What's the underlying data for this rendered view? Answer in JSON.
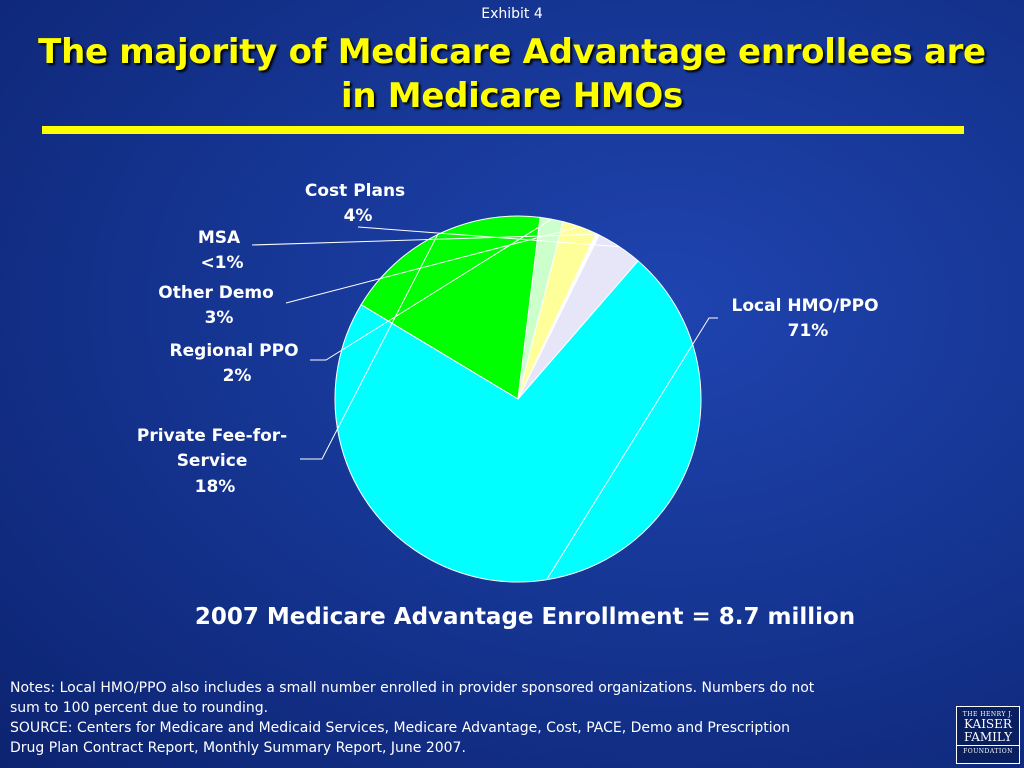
{
  "header": {
    "exhibit": "Exhibit 4",
    "title_line1": "The majority of Medicare Advantage enrollees are",
    "title_line2": "in Medicare HMOs"
  },
  "colors": {
    "title": "#ffff00",
    "rule": "#ffff00"
  },
  "chart_data": {
    "type": "pie",
    "title": "",
    "slices": [
      {
        "label": "Local HMO/PPO",
        "value": 71,
        "value_label": "71%",
        "color": "#00ffff"
      },
      {
        "label": "Private Fee-for-Service",
        "value": 18,
        "value_label": "18%",
        "color": "#00ff00"
      },
      {
        "label": "Regional PPO",
        "value": 2,
        "value_label": "2%",
        "color": "#ccffcc"
      },
      {
        "label": "Other Demo",
        "value": 3,
        "value_label": "3%",
        "color": "#ffff99"
      },
      {
        "label": "MSA",
        "value": 0.3,
        "value_label": "<1%",
        "color": "#ffffff"
      },
      {
        "label": "Cost Plans",
        "value": 4,
        "value_label": "4%",
        "color": "#e6e6f8"
      }
    ]
  },
  "summary": "2007 Medicare Advantage Enrollment = 8.7 million",
  "notes": {
    "line1": "Notes: Local HMO/PPO also includes a small number enrolled in provider sponsored organizations. Numbers do not",
    "line2": "sum to 100 percent due to rounding.",
    "line3": "SOURCE: Centers for Medicare and Medicaid Services, Medicare Advantage, Cost, PACE, Demo and Prescription",
    "line4": "Drug Plan Contract Report, Monthly Summary Report, June 2007."
  },
  "logo": {
    "line1": "THE HENRY J.",
    "line2": "KAISER",
    "line3": "FAMILY",
    "line4": "FOUNDATION"
  }
}
